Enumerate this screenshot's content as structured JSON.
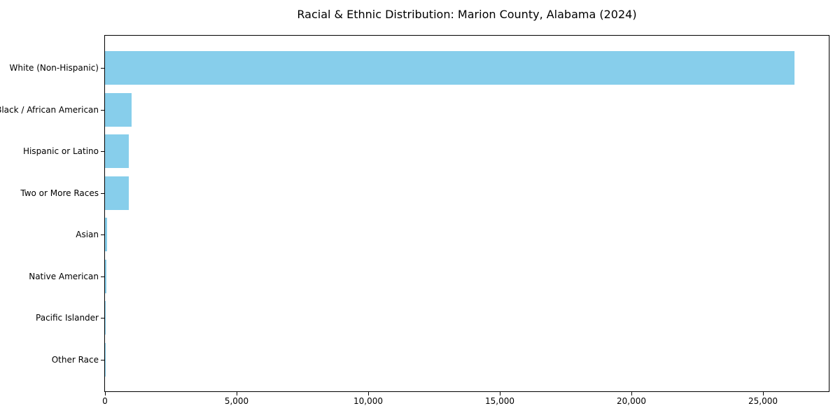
{
  "chart_data": {
    "type": "bar",
    "orientation": "horizontal",
    "title": "Racial & Ethnic Distribution: Marion County, Alabama (2024)",
    "categories": [
      "White (Non-Hispanic)",
      "Black / African American",
      "Hispanic or Latino",
      "Two or More Races",
      "Asian",
      "Native American",
      "Pacific Islander",
      "Other Race"
    ],
    "values": [
      26200,
      1000,
      910,
      900,
      90,
      45,
      15,
      5
    ],
    "xlabel": "",
    "ylabel": "",
    "xlim": [
      0,
      27500
    ],
    "xticks": [
      0,
      5000,
      10000,
      15000,
      20000,
      25000
    ],
    "xtick_labels": [
      "0",
      "5,000",
      "10,000",
      "15,000",
      "20,000",
      "25,000"
    ],
    "bar_color": "#87CEEB",
    "background_color": "#ffffff",
    "frame_color": "#000000",
    "grid": false,
    "legend": null
  }
}
